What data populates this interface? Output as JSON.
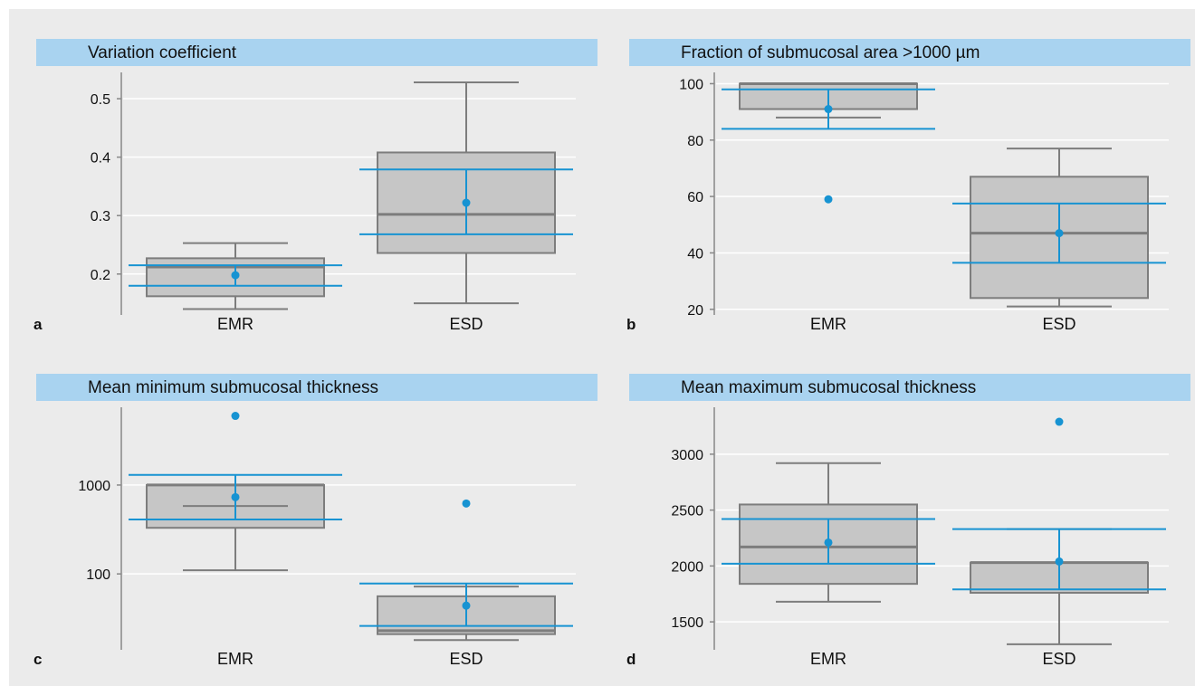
{
  "colors": {
    "background": "#ebebeb",
    "header": "#a9d3f0",
    "box_fill": "#c6c6c6",
    "box_stroke": "#7d7d7d",
    "ci": "#1793d2",
    "grid": "#ffffff",
    "axis": "#888888",
    "text": "#111111"
  },
  "chart_data": [
    {
      "type": "box",
      "panel_label": "a",
      "title": "Variation coefficient",
      "categories": [
        "EMR",
        "ESD"
      ],
      "y_scale": "linear",
      "ylim": [
        0.13,
        0.545
      ],
      "yticks": [
        0.2,
        0.3,
        0.4,
        0.5
      ],
      "ytick_labels": [
        "0.2",
        "0.3",
        "0.4",
        "0.5"
      ],
      "grid": true,
      "groups": [
        {
          "name": "EMR",
          "whisker_low": 0.14,
          "q1": 0.162,
          "median": 0.212,
          "q3": 0.227,
          "whisker_high": 0.253,
          "mean": 0.198,
          "ci_low": 0.18,
          "ci_high": 0.215,
          "outliers": []
        },
        {
          "name": "ESD",
          "whisker_low": 0.15,
          "q1": 0.236,
          "median": 0.302,
          "q3": 0.408,
          "whisker_high": 0.528,
          "mean": 0.322,
          "ci_low": 0.268,
          "ci_high": 0.379,
          "outliers": []
        }
      ]
    },
    {
      "type": "box",
      "panel_label": "b",
      "title": "Fraction of submucosal area >1000 µm",
      "categories": [
        "EMR",
        "ESD"
      ],
      "y_scale": "linear",
      "ylim": [
        18,
        104
      ],
      "yticks": [
        20,
        40,
        60,
        80,
        100
      ],
      "ytick_labels": [
        "20",
        "40",
        "60",
        "80",
        "100"
      ],
      "grid": true,
      "groups": [
        {
          "name": "EMR",
          "whisker_low": 88,
          "q1": 91,
          "median": 100,
          "q3": 100,
          "whisker_high": 100,
          "mean": 91,
          "ci_low": 84,
          "ci_high": 98,
          "outliers": [
            59
          ]
        },
        {
          "name": "ESD",
          "whisker_low": 21,
          "q1": 24,
          "median": 47,
          "q3": 67,
          "whisker_high": 77,
          "mean": 47,
          "ci_low": 36.5,
          "ci_high": 57.5,
          "outliers": []
        }
      ]
    },
    {
      "type": "box",
      "panel_label": "c",
      "title": "Mean minimum submucosal thickness",
      "categories": [
        "EMR",
        "ESD"
      ],
      "y_scale": "log",
      "ylim": [
        14,
        7500
      ],
      "yticks": [
        100,
        1000
      ],
      "ytick_labels": [
        "100",
        "1000"
      ],
      "grid": true,
      "groups": [
        {
          "name": "EMR",
          "whisker_low": 110,
          "q1": 330,
          "median": 1000,
          "q3": 1000,
          "whisker_high": 1000,
          "mean": 730,
          "ci_low": 410,
          "ci_high": 1300,
          "outliers": [
            6000
          ],
          "extra_line": 580
        },
        {
          "name": "ESD",
          "whisker_low": 18,
          "q1": 21,
          "median": 23,
          "q3": 56,
          "whisker_high": 72,
          "mean": 44,
          "ci_low": 26,
          "ci_high": 78,
          "outliers": [
            620
          ]
        }
      ]
    },
    {
      "type": "box",
      "panel_label": "d",
      "title": "Mean maximum submucosal thickness",
      "categories": [
        "EMR",
        "ESD"
      ],
      "y_scale": "linear",
      "ylim": [
        1250,
        3420
      ],
      "yticks": [
        1500,
        2000,
        2500,
        3000
      ],
      "ytick_labels": [
        "1500",
        "2000",
        "2500",
        "3000"
      ],
      "grid": true,
      "groups": [
        {
          "name": "EMR",
          "whisker_low": 1680,
          "q1": 1840,
          "median": 2170,
          "q3": 2550,
          "whisker_high": 2920,
          "mean": 2210,
          "ci_low": 2020,
          "ci_high": 2420,
          "outliers": []
        },
        {
          "name": "ESD",
          "whisker_low": 1300,
          "q1": 1760,
          "median": 2030,
          "q3": 2030,
          "whisker_high": 2330,
          "mean": 2040,
          "ci_low": 1790,
          "ci_high": 2330,
          "outliers": [
            3290
          ]
        }
      ]
    }
  ]
}
